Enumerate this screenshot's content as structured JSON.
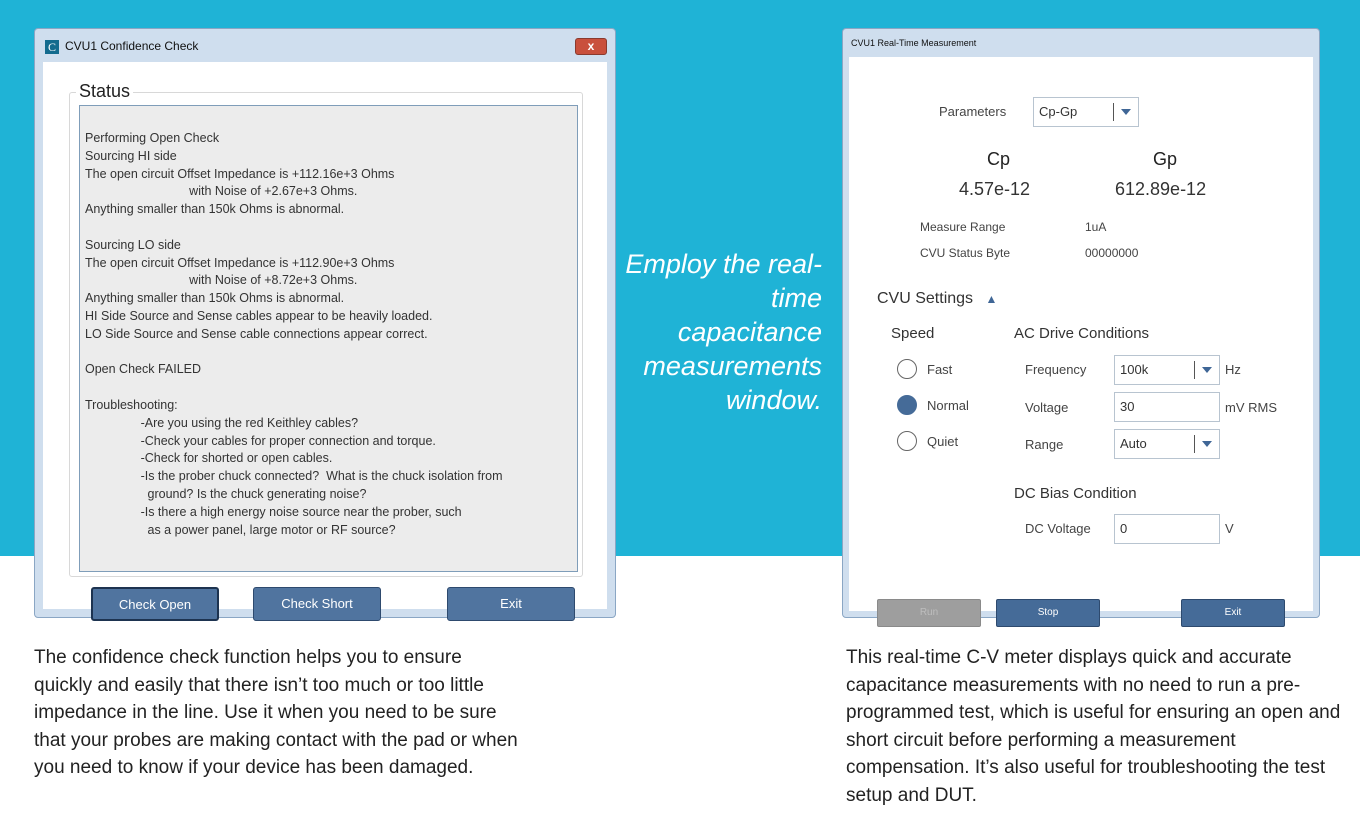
{
  "confidence_window": {
    "title": "CVU1 Confidence Check",
    "logo_letter": "C",
    "close_label": "x",
    "status_label": "Status",
    "status_lines": [
      "Performing Open Check",
      "Sourcing HI side",
      "The open circuit Offset Impedance is +112.16e+3 Ohms",
      "                              with Noise of +2.67e+3 Ohms.",
      "Anything smaller than 150k Ohms is abnormal.",
      "",
      "Sourcing LO side",
      "The open circuit Offset Impedance is +112.90e+3 Ohms",
      "                              with Noise of +8.72e+3 Ohms.",
      "Anything smaller than 150k Ohms is abnormal.",
      "HI Side Source and Sense cables appear to be heavily loaded.",
      "LO Side Source and Sense cable connections appear correct.",
      "",
      "Open Check FAILED",
      "",
      "Troubleshooting:",
      "                -Are you using the red Keithley cables?",
      "                -Check your cables for proper connection and torque.",
      "                -Check for shorted or open cables.",
      "                -Is the prober chuck connected?  What is the chuck isolation from",
      "                  ground? Is the chuck generating noise?",
      "                -Is there a high energy noise source near the prober, such",
      "                  as a power panel, large motor or RF source?"
    ],
    "buttons": {
      "check_open": "Check Open",
      "check_short": "Check Short",
      "exit": "Exit"
    }
  },
  "realtime_window": {
    "title": "CVU1 Real-Time Measurement",
    "parameters_label": "Parameters",
    "parameters_value": "Cp-Gp",
    "cp_label": "Cp",
    "cp_value": "4.57e-12",
    "gp_label": "Gp",
    "gp_value": "612.89e-12",
    "measure_range_label": "Measure Range",
    "measure_range_value": "1uA",
    "status_byte_label": "CVU Status Byte",
    "status_byte_value": "00000000",
    "settings_label": "CVU Settings",
    "speed_label": "Speed",
    "speed_options": [
      "Fast",
      "Normal",
      "Quiet"
    ],
    "speed_selected": "Normal",
    "ac_label": "AC Drive Conditions",
    "frequency_label": "Frequency",
    "frequency_value": "100k",
    "frequency_unit": "Hz",
    "voltage_label": "Voltage",
    "voltage_value": "30",
    "voltage_unit": "mV RMS",
    "range_label": "Range",
    "range_value": "Auto",
    "dc_label": "DC Bias Condition",
    "dc_voltage_label": "DC Voltage",
    "dc_voltage_value": "0",
    "dc_voltage_unit": "V",
    "buttons": {
      "run": "Run",
      "stop": "Stop",
      "exit": "Exit"
    }
  },
  "callout": "Employ the real-time capacitance measurements window.",
  "caption_left": "The confidence check function helps you to ensure quickly and easily that there isn’t too much or too little impedance in the line. Use it when you need to be sure that your probes are making contact with the pad or when you need to know if your device has been damaged.",
  "caption_right": "This real-time C-V meter displays quick and accurate capacitance measurements with no need to run a pre-programmed test, which is useful for ensuring an open and short circuit before performing a measurement compensation. It’s also useful for troubleshooting the test setup and DUT.",
  "colors": {
    "background": "#1fb3d6",
    "button": "#456b98"
  }
}
